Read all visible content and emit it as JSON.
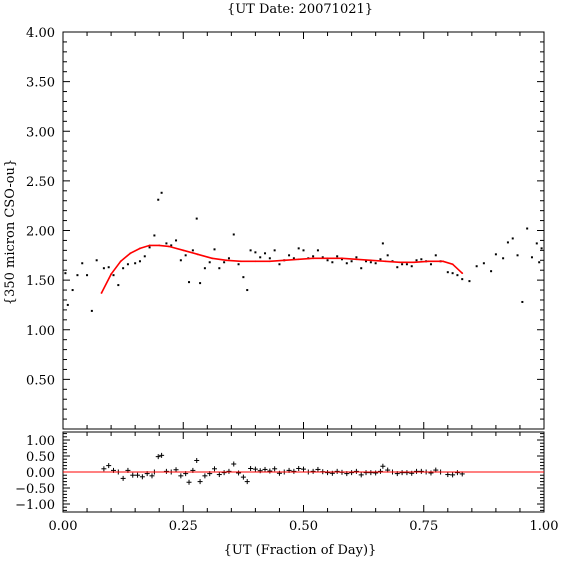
{
  "chart_data": [
    {
      "type": "scatter",
      "title": "{UT Date: 20071021}",
      "xlabel": "",
      "ylabel": "{350 micron CSO-ou}",
      "xlim": [
        0.0,
        1.0
      ],
      "ylim": [
        0.0,
        4.0
      ],
      "yticks": [
        "1.00",
        "1.50",
        "2.00",
        "2.50",
        "3.00",
        "3.50",
        "4.00"
      ],
      "yticks_minor_labeled": [
        "0.50"
      ],
      "grid": false,
      "series": [
        {
          "marker": "dot",
          "color": "#000000",
          "points": [
            [
              0.005,
              1.57
            ],
            [
              0.01,
              1.25
            ],
            [
              0.02,
              1.4
            ],
            [
              0.03,
              1.55
            ],
            [
              0.04,
              1.67
            ],
            [
              0.05,
              1.55
            ],
            [
              0.06,
              1.19
            ],
            [
              0.07,
              1.7
            ],
            [
              0.085,
              1.62
            ],
            [
              0.095,
              1.63
            ],
            [
              0.105,
              1.55
            ],
            [
              0.115,
              1.45
            ],
            [
              0.125,
              1.62
            ],
            [
              0.135,
              1.66
            ],
            [
              0.15,
              1.67
            ],
            [
              0.16,
              1.69
            ],
            [
              0.17,
              1.74
            ],
            [
              0.18,
              1.83
            ],
            [
              0.19,
              1.95
            ],
            [
              0.198,
              2.31
            ],
            [
              0.205,
              2.38
            ],
            [
              0.215,
              1.87
            ],
            [
              0.225,
              1.85
            ],
            [
              0.235,
              1.9
            ],
            [
              0.245,
              1.7
            ],
            [
              0.255,
              1.75
            ],
            [
              0.262,
              1.48
            ],
            [
              0.27,
              1.8
            ],
            [
              0.278,
              2.12
            ],
            [
              0.285,
              1.47
            ],
            [
              0.295,
              1.62
            ],
            [
              0.305,
              1.68
            ],
            [
              0.315,
              1.81
            ],
            [
              0.325,
              1.62
            ],
            [
              0.335,
              1.68
            ],
            [
              0.345,
              1.72
            ],
            [
              0.355,
              1.96
            ],
            [
              0.365,
              1.66
            ],
            [
              0.375,
              1.53
            ],
            [
              0.383,
              1.4
            ],
            [
              0.39,
              1.8
            ],
            [
              0.4,
              1.78
            ],
            [
              0.41,
              1.73
            ],
            [
              0.42,
              1.77
            ],
            [
              0.43,
              1.72
            ],
            [
              0.44,
              1.8
            ],
            [
              0.45,
              1.66
            ],
            [
              0.46,
              1.7
            ],
            [
              0.47,
              1.75
            ],
            [
              0.48,
              1.72
            ],
            [
              0.49,
              1.82
            ],
            [
              0.5,
              1.8
            ],
            [
              0.51,
              1.72
            ],
            [
              0.52,
              1.74
            ],
            [
              0.53,
              1.8
            ],
            [
              0.54,
              1.73
            ],
            [
              0.55,
              1.7
            ],
            [
              0.56,
              1.68
            ],
            [
              0.57,
              1.74
            ],
            [
              0.58,
              1.71
            ],
            [
              0.59,
              1.67
            ],
            [
              0.6,
              1.69
            ],
            [
              0.61,
              1.73
            ],
            [
              0.62,
              1.62
            ],
            [
              0.63,
              1.69
            ],
            [
              0.64,
              1.68
            ],
            [
              0.65,
              1.67
            ],
            [
              0.66,
              1.71
            ],
            [
              0.665,
              1.87
            ],
            [
              0.675,
              1.75
            ],
            [
              0.685,
              1.69
            ],
            [
              0.695,
              1.63
            ],
            [
              0.705,
              1.66
            ],
            [
              0.715,
              1.66
            ],
            [
              0.725,
              1.64
            ],
            [
              0.735,
              1.7
            ],
            [
              0.745,
              1.71
            ],
            [
              0.755,
              1.69
            ],
            [
              0.765,
              1.66
            ],
            [
              0.775,
              1.75
            ],
            [
              0.785,
              1.69
            ],
            [
              0.8,
              1.58
            ],
            [
              0.81,
              1.57
            ],
            [
              0.82,
              1.55
            ],
            [
              0.83,
              1.51
            ],
            [
              0.845,
              1.49
            ],
            [
              0.86,
              1.64
            ],
            [
              0.875,
              1.67
            ],
            [
              0.89,
              1.59
            ],
            [
              0.9,
              1.76
            ],
            [
              0.915,
              1.72
            ],
            [
              0.925,
              1.88
            ],
            [
              0.935,
              1.92
            ],
            [
              0.945,
              1.75
            ],
            [
              0.955,
              1.28
            ],
            [
              0.965,
              2.02
            ],
            [
              0.975,
              1.73
            ],
            [
              0.985,
              1.87
            ],
            [
              0.99,
              1.68
            ],
            [
              0.995,
              1.82
            ]
          ]
        },
        {
          "type": "line",
          "color": "#ff0000",
          "line": [
            [
              0.08,
              1.37
            ],
            [
              0.1,
              1.56
            ],
            [
              0.12,
              1.69
            ],
            [
              0.14,
              1.77
            ],
            [
              0.16,
              1.82
            ],
            [
              0.18,
              1.85
            ],
            [
              0.2,
              1.85
            ],
            [
              0.22,
              1.84
            ],
            [
              0.25,
              1.8
            ],
            [
              0.28,
              1.76
            ],
            [
              0.31,
              1.72
            ],
            [
              0.34,
              1.7
            ],
            [
              0.37,
              1.69
            ],
            [
              0.4,
              1.69
            ],
            [
              0.43,
              1.69
            ],
            [
              0.46,
              1.7
            ],
            [
              0.49,
              1.71
            ],
            [
              0.52,
              1.72
            ],
            [
              0.55,
              1.72
            ],
            [
              0.58,
              1.72
            ],
            [
              0.61,
              1.71
            ],
            [
              0.64,
              1.7
            ],
            [
              0.67,
              1.69
            ],
            [
              0.7,
              1.68
            ],
            [
              0.73,
              1.68
            ],
            [
              0.76,
              1.69
            ],
            [
              0.79,
              1.69
            ],
            [
              0.81,
              1.66
            ],
            [
              0.83,
              1.57
            ]
          ]
        }
      ]
    },
    {
      "type": "scatter",
      "title": "",
      "xlabel": "{UT (Fraction of Day)}",
      "ylabel": "",
      "xlim": [
        0.0,
        1.0
      ],
      "ylim": [
        -1.25,
        1.25
      ],
      "xticks": [
        "0.00",
        "0.25",
        "0.50",
        "0.75",
        "1.00"
      ],
      "yticks": [
        "1.00",
        "0.50",
        "0.00",
        "−0.50",
        "−1.00"
      ],
      "series": [
        {
          "marker": "plus",
          "color": "#000000",
          "points": [
            [
              0.085,
              0.1
            ],
            [
              0.095,
              0.2
            ],
            [
              0.105,
              0.05
            ],
            [
              0.115,
              0.0
            ],
            [
              0.125,
              -0.2
            ],
            [
              0.135,
              0.05
            ],
            [
              0.145,
              -0.1
            ],
            [
              0.155,
              -0.1
            ],
            [
              0.165,
              -0.15
            ],
            [
              0.175,
              -0.05
            ],
            [
              0.185,
              -0.12
            ],
            [
              0.19,
              0.0
            ],
            [
              0.198,
              0.48
            ],
            [
              0.205,
              0.52
            ],
            [
              0.215,
              0.02
            ],
            [
              0.225,
              0.0
            ],
            [
              0.235,
              0.07
            ],
            [
              0.245,
              -0.12
            ],
            [
              0.255,
              -0.05
            ],
            [
              0.262,
              -0.32
            ],
            [
              0.27,
              0.05
            ],
            [
              0.278,
              0.36
            ],
            [
              0.285,
              -0.3
            ],
            [
              0.295,
              -0.12
            ],
            [
              0.305,
              -0.05
            ],
            [
              0.315,
              0.1
            ],
            [
              0.325,
              -0.08
            ],
            [
              0.335,
              -0.02
            ],
            [
              0.345,
              0.02
            ],
            [
              0.355,
              0.25
            ],
            [
              0.365,
              -0.03
            ],
            [
              0.375,
              -0.16
            ],
            [
              0.383,
              -0.3
            ],
            [
              0.39,
              0.11
            ],
            [
              0.4,
              0.09
            ],
            [
              0.41,
              0.04
            ],
            [
              0.42,
              0.08
            ],
            [
              0.43,
              0.03
            ],
            [
              0.44,
              0.1
            ],
            [
              0.45,
              -0.04
            ],
            [
              0.46,
              0.0
            ],
            [
              0.47,
              0.05
            ],
            [
              0.48,
              0.02
            ],
            [
              0.49,
              0.11
            ],
            [
              0.5,
              0.09
            ],
            [
              0.51,
              0.0
            ],
            [
              0.52,
              0.02
            ],
            [
              0.53,
              0.08
            ],
            [
              0.54,
              0.01
            ],
            [
              0.55,
              -0.02
            ],
            [
              0.56,
              -0.04
            ],
            [
              0.57,
              0.02
            ],
            [
              0.58,
              -0.01
            ],
            [
              0.59,
              -0.05
            ],
            [
              0.6,
              -0.02
            ],
            [
              0.61,
              0.02
            ],
            [
              0.62,
              -0.09
            ],
            [
              0.63,
              -0.02
            ],
            [
              0.64,
              -0.02
            ],
            [
              0.65,
              -0.03
            ],
            [
              0.66,
              0.02
            ],
            [
              0.665,
              0.18
            ],
            [
              0.675,
              0.06
            ],
            [
              0.685,
              0.0
            ],
            [
              0.695,
              -0.05
            ],
            [
              0.705,
              -0.02
            ],
            [
              0.715,
              -0.02
            ],
            [
              0.725,
              -0.04
            ],
            [
              0.735,
              0.02
            ],
            [
              0.745,
              0.02
            ],
            [
              0.755,
              0.0
            ],
            [
              0.765,
              -0.03
            ],
            [
              0.775,
              0.06
            ],
            [
              0.785,
              0.0
            ],
            [
              0.8,
              -0.08
            ],
            [
              0.81,
              -0.09
            ],
            [
              0.82,
              -0.02
            ],
            [
              0.83,
              -0.06
            ]
          ]
        },
        {
          "type": "line",
          "color": "#ff0000",
          "line": [
            [
              0.0,
              0.0
            ],
            [
              1.0,
              0.0
            ]
          ]
        }
      ]
    }
  ]
}
